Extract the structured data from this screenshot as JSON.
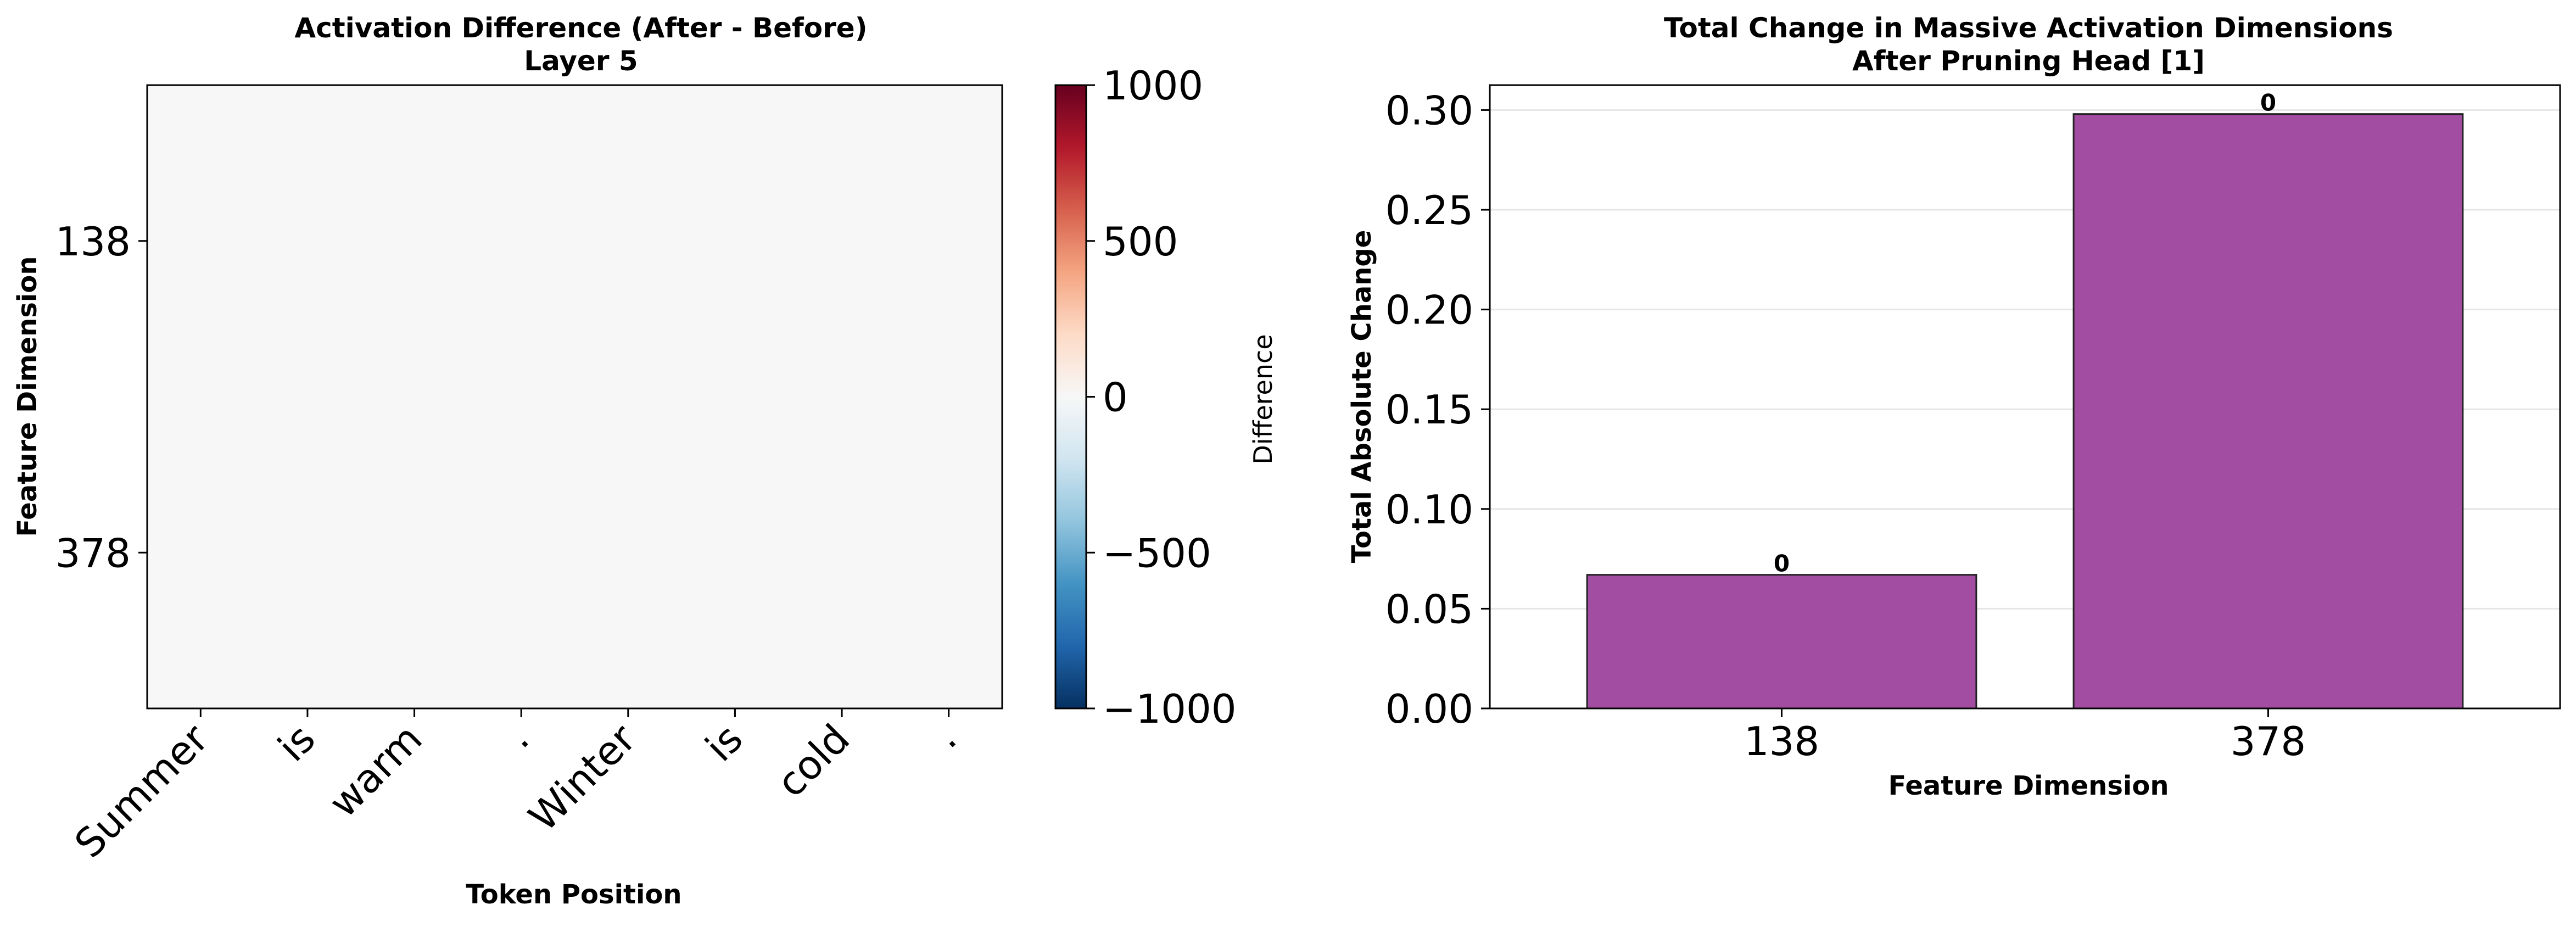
{
  "chart_data": [
    {
      "type": "heatmap",
      "title": "Activation Difference (After - Before)",
      "subtitle": "Layer 5",
      "xlabel": "Token Position",
      "ylabel": "Feature Dimension",
      "x_categories": [
        "Summer",
        "is",
        "warm",
        ".",
        "Winter",
        "is",
        "cold",
        "."
      ],
      "y_categories": [
        "138",
        "378"
      ],
      "values": [
        [
          0,
          0,
          0,
          0,
          0,
          0,
          0,
          0
        ],
        [
          0,
          0,
          0,
          0,
          0,
          0,
          0,
          0
        ]
      ],
      "colormap": "RdBu_r",
      "colorbar": {
        "label": "Difference",
        "range": [
          -1000,
          1000
        ],
        "ticks": [
          1000,
          500,
          0,
          -500,
          -1000
        ],
        "tick_labels": [
          "1000",
          "500",
          "0",
          "−500",
          "−1000"
        ]
      }
    },
    {
      "type": "bar",
      "title": "Total Change in Massive Activation Dimensions",
      "subtitle": "After Pruning Head [1]",
      "xlabel": "Feature Dimension",
      "ylabel": "Total Absolute Change",
      "categories": [
        "138",
        "378"
      ],
      "values": [
        0.067,
        0.298
      ],
      "bar_labels": [
        "0",
        "0"
      ],
      "ylim": [
        0,
        0.3125
      ],
      "yticks": [
        0.0,
        0.05,
        0.1,
        0.15,
        0.2,
        0.25,
        0.3
      ],
      "ytick_labels": [
        "0.00",
        "0.05",
        "0.10",
        "0.15",
        "0.20",
        "0.25",
        "0.30"
      ],
      "grid": "y",
      "color": "#a24ca2"
    }
  ]
}
